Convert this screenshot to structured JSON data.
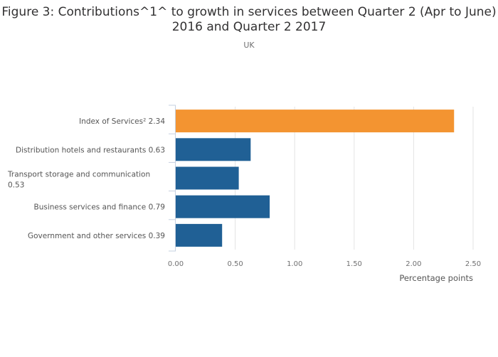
{
  "chart_data": {
    "type": "bar",
    "orientation": "horizontal",
    "title": "Figure 3: Contributions^1^ to growth in services between Quarter 2 (Apr to June) 2016 and Quarter 2 2017",
    "subtitle": "UK",
    "xlabel": "Percentage points",
    "ylabel": "",
    "xlim": [
      0,
      2.5
    ],
    "xticks": [
      "0.00",
      "0.50",
      "1.00",
      "1.50",
      "2.00",
      "2.50"
    ],
    "grid": true,
    "categories": [
      [
        "Index of Services² 2.34"
      ],
      [
        "Distribution hotels and restaurants 0.63"
      ],
      [
        "Transport storage and communication",
        "0.53"
      ],
      [
        "Business services and finance 0.79"
      ],
      [
        "Government and other services 0.39"
      ]
    ],
    "values": [
      2.34,
      0.63,
      0.53,
      0.79,
      0.39
    ],
    "colors": [
      "#f39431",
      "#206095",
      "#206095",
      "#206095",
      "#206095"
    ]
  }
}
